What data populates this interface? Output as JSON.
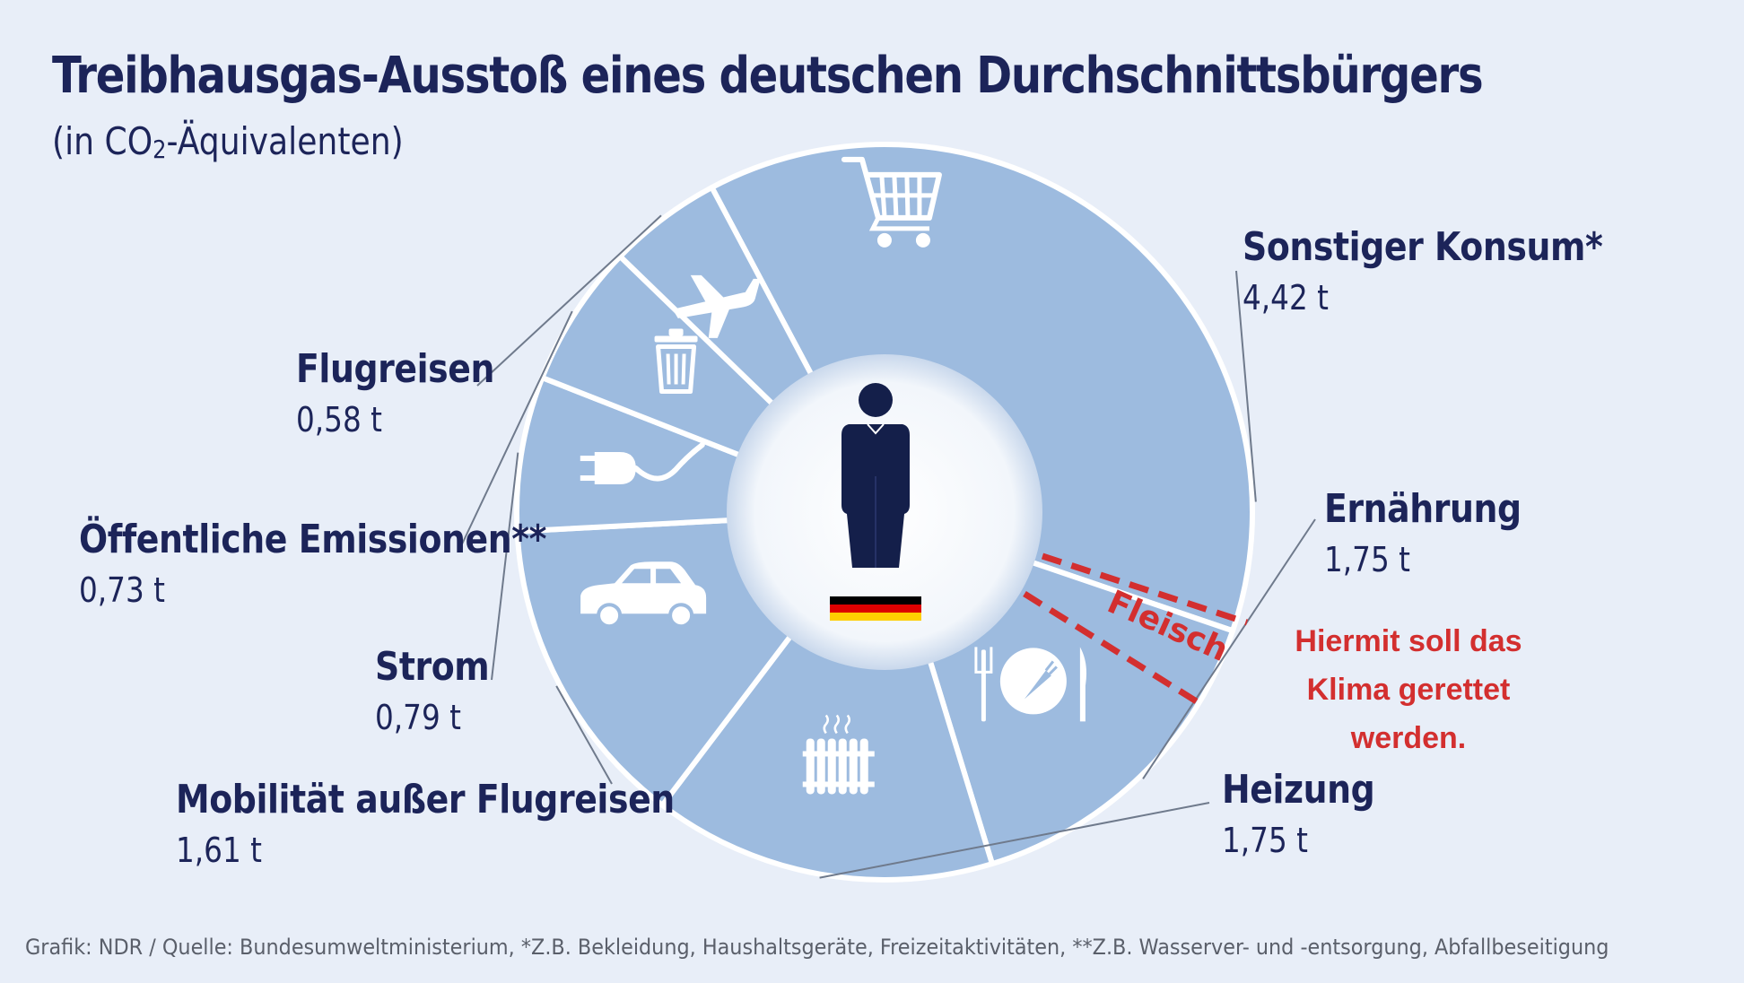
{
  "title": "Treibhausgas-Ausstoß eines deutschen Durchschnittsbürgers",
  "subtitle_prefix": "(in CO",
  "subtitle_sub": "2",
  "subtitle_suffix": "-Äquivalenten)",
  "source": "Grafik: NDR / Quelle: Bundesumweltministerium, *Z.B. Bekleidung, Haushaltsgeräte, Freizeitaktivitäten, **Z.B. Wasserver- und -entsorgung, Abfallbeseitigung",
  "annotation": {
    "slice_label": "Fleisch",
    "note_lines": [
      "Hiermit soll das",
      "Klima gerettet",
      "werden."
    ],
    "color": "#d32f2f"
  },
  "colors": {
    "background": "#e8eef8",
    "slice_fill": "#9dbbdf",
    "text": "#1c2459",
    "figure": "#141f4a"
  },
  "chart_data": {
    "type": "pie",
    "style": "donut",
    "unit": "t",
    "slices": [
      {
        "name": "Sonstiger Konsum*",
        "value": 4.42,
        "value_label": "4,42 t",
        "icon": "shopping-cart-icon"
      },
      {
        "name": "Ernährung",
        "value": 1.75,
        "value_label": "1,75 t",
        "icon": "plate-cutlery-icon"
      },
      {
        "name": "Heizung",
        "value": 1.75,
        "value_label": "1,75 t",
        "icon": "radiator-icon"
      },
      {
        "name": "Mobilität außer Flugreisen",
        "value": 1.61,
        "value_label": "1,61 t",
        "icon": "car-icon"
      },
      {
        "name": "Strom",
        "value": 0.79,
        "value_label": "0,79 t",
        "icon": "plug-icon"
      },
      {
        "name": "Öffentliche Emissionen**",
        "value": 0.73,
        "value_label": "0,73 t",
        "icon": "trash-bin-icon"
      },
      {
        "name": "Flugreisen",
        "value": 0.58,
        "value_label": "0,58 t",
        "icon": "airplane-icon"
      }
    ],
    "center_icon": "person-icon",
    "center_flag": "german-flag-icon"
  }
}
